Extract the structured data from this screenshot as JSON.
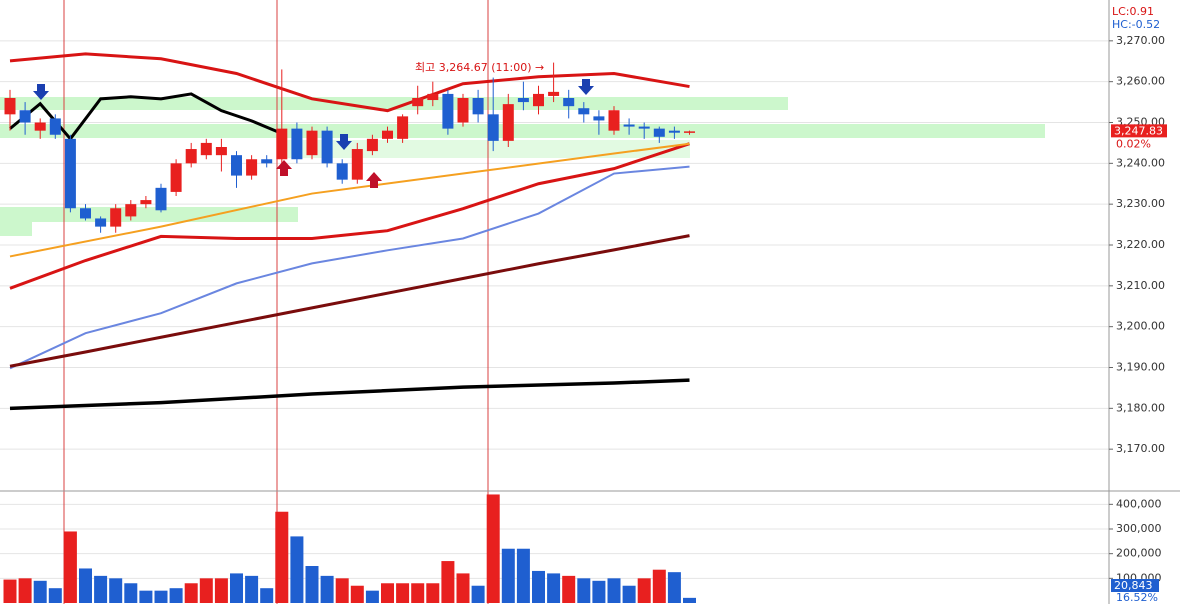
{
  "chart_data": [
    {
      "type": "candlestick",
      "annotation": "최고 3,264.67 (11:00) →",
      "lc_label": "LC:0.91",
      "hc_label": "HC:-0.52",
      "last_label": "3,247.83",
      "change_label": "0.02%",
      "up_color": "#e8201f",
      "down_color": "#1f5fd0",
      "ylim": [
        3160,
        3280
      ],
      "yticks": [
        {
          "value": 3270,
          "label": "3,270.00"
        },
        {
          "value": 3260,
          "label": "3,260.00"
        },
        {
          "value": 3250,
          "label": "3,250.00"
        },
        {
          "value": 3240,
          "label": "3,240.00"
        },
        {
          "value": 3230,
          "label": "3,230.00"
        },
        {
          "value": 3220,
          "label": "3,220.00"
        },
        {
          "value": 3210,
          "label": "3,210.00"
        },
        {
          "value": 3200,
          "label": "3,200.00"
        },
        {
          "value": 3190,
          "label": "3,190.00"
        },
        {
          "value": 3180,
          "label": "3,180.00"
        },
        {
          "value": 3170,
          "label": "3,170.00"
        }
      ],
      "grid": true,
      "open": [
        3252,
        3253,
        3248,
        3251,
        3246,
        3229,
        3226.5,
        3224.5,
        3227,
        3230,
        3234,
        3233,
        3240,
        3242,
        3242,
        3242,
        3237,
        3241,
        3241,
        3248.5,
        3242,
        3248,
        3240,
        3236,
        3243,
        3246,
        3246,
        3254,
        3255.5,
        3257,
        3250,
        3256,
        3252,
        3245.5,
        3256,
        3254,
        3256.5,
        3256,
        3253.5,
        3251.5,
        3248,
        3249.5,
        3249,
        3248.5,
        3248,
        3247.5
      ],
      "high": [
        3258,
        3255,
        3251,
        3252,
        3247,
        3230,
        3227,
        3230,
        3231,
        3232,
        3235,
        3241,
        3245,
        3246,
        3246,
        3243,
        3242,
        3242,
        3263,
        3250,
        3249,
        3249,
        3241,
        3245,
        3247,
        3249,
        3252,
        3259,
        3260,
        3258,
        3257,
        3258,
        3261,
        3257,
        3260,
        3259,
        3264.67,
        3258,
        3255,
        3253,
        3254,
        3251,
        3250,
        3249,
        3249,
        3248
      ],
      "low": [
        3248,
        3247,
        3246,
        3246,
        3228,
        3226,
        3223,
        3223,
        3226,
        3229,
        3228,
        3232,
        3239,
        3241,
        3238,
        3234,
        3236,
        3239,
        3239,
        3240,
        3241,
        3239,
        3235,
        3235,
        3242,
        3245,
        3245,
        3252,
        3254,
        3247,
        3249,
        3250,
        3243,
        3244,
        3253,
        3252,
        3255,
        3251,
        3250,
        3247,
        3247,
        3247,
        3246,
        3245,
        3246,
        3247
      ],
      "close": [
        3256,
        3250,
        3250,
        3247,
        3229,
        3226.5,
        3224.5,
        3229,
        3230,
        3231,
        3228.5,
        3240,
        3243.5,
        3245,
        3244,
        3237,
        3241,
        3240,
        3248.5,
        3241,
        3248,
        3240,
        3236,
        3243.5,
        3246,
        3248,
        3251.5,
        3256,
        3257,
        3248.5,
        3256,
        3252,
        3245.5,
        3254.5,
        3255,
        3257,
        3257.5,
        3254,
        3252,
        3250.5,
        3253,
        3249,
        3248.5,
        3246.5,
        3247.5,
        3247.83
      ],
      "series": [
        {
          "color": "#d81414",
          "width": 3,
          "x": [
            0,
            5,
            10,
            15,
            20,
            25,
            30,
            35,
            40,
            45
          ],
          "values": [
            3265.1,
            3266.8,
            3265.6,
            3262,
            3255.8,
            3252.9,
            3259.5,
            3261.2,
            3262,
            3258.8
          ]
        },
        {
          "color": "#d81414",
          "width": 3,
          "x": [
            0,
            5,
            10,
            15,
            20,
            25,
            30,
            35,
            40,
            45
          ],
          "values": [
            3209.4,
            3216.2,
            3222.1,
            3221.6,
            3221.6,
            3223.5,
            3228.9,
            3235,
            3238.7,
            3244.8
          ]
        },
        {
          "color": "#6a86e0",
          "width": 2,
          "x": [
            0,
            5,
            10,
            15,
            20,
            25,
            30,
            35,
            40,
            45
          ],
          "values": [
            3189.8,
            3198.4,
            3203.3,
            3210.6,
            3215.5,
            3218.7,
            3221.6,
            3227.7,
            3237.5,
            3239.2
          ]
        },
        {
          "color": "#7a0c0c",
          "width": 3,
          "x": [
            0,
            5,
            10,
            15,
            20,
            25,
            30,
            35,
            40,
            45
          ],
          "values": [
            3190.3,
            3193.8,
            3197.4,
            3201,
            3204.6,
            3208.2,
            3211.8,
            3215.4,
            3218.8,
            3222.3
          ]
        },
        {
          "color": "#000000",
          "width": 3.5,
          "x": [
            0,
            10,
            20,
            30,
            40,
            45
          ],
          "values": [
            3180,
            3181.4,
            3183.5,
            3185.2,
            3186.2,
            3186.9
          ]
        },
        {
          "color": "#f5a020",
          "width": 2,
          "x": [
            0,
            10,
            20,
            30,
            40,
            45
          ],
          "values": [
            3217.2,
            3224.5,
            3232.6,
            3237.5,
            3242.4,
            3244.8
          ]
        },
        {
          "color": "#000000",
          "width": 3,
          "x": [
            0,
            2,
            4,
            6,
            8,
            10,
            12,
            14,
            16,
            18
          ],
          "values": [
            3248.5,
            3254.6,
            3246,
            3255.8,
            3256.3,
            3255.8,
            3257,
            3252.9,
            3250.4,
            3247.3
          ]
        }
      ]
    },
    {
      "type": "bar",
      "last_label": "20,843",
      "ratio_label": "16.52%",
      "ylim": [
        0,
        450000
      ],
      "yticks": [
        {
          "value": 400000,
          "label": "400,000"
        },
        {
          "value": 300000,
          "label": "300,000"
        },
        {
          "value": 200000,
          "label": "200,000"
        },
        {
          "value": 100000,
          "label": "100,000"
        }
      ],
      "values": [
        95000,
        100000,
        90000,
        60000,
        290000,
        140000,
        110000,
        100000,
        80000,
        50000,
        50000,
        60000,
        80000,
        100000,
        100000,
        120000,
        110000,
        60000,
        370000,
        270000,
        150000,
        110000,
        100000,
        70000,
        50000,
        80000,
        80000,
        80000,
        80000,
        170000,
        120000,
        70000,
        440000,
        220000,
        220000,
        130000,
        120000,
        110000,
        100000,
        90000,
        100000,
        70000,
        100000,
        135000,
        125000,
        20843
      ],
      "colors": [
        "#e8201f",
        "#e8201f",
        "#1f5fd0",
        "#1f5fd0",
        "#e8201f",
        "#1f5fd0",
        "#1f5fd0",
        "#1f5fd0",
        "#1f5fd0",
        "#1f5fd0",
        "#1f5fd0",
        "#1f5fd0",
        "#e8201f",
        "#e8201f",
        "#e8201f",
        "#1f5fd0",
        "#1f5fd0",
        "#1f5fd0",
        "#e8201f",
        "#1f5fd0",
        "#1f5fd0",
        "#1f5fd0",
        "#e8201f",
        "#e8201f",
        "#1f5fd0",
        "#e8201f",
        "#e8201f",
        "#e8201f",
        "#e8201f",
        "#e8201f",
        "#e8201f",
        "#1f5fd0",
        "#e8201f",
        "#1f5fd0",
        "#1f5fd0",
        "#1f5fd0",
        "#1f5fd0",
        "#e8201f",
        "#1f5fd0",
        "#1f5fd0",
        "#1f5fd0",
        "#1f5fd0",
        "#e8201f",
        "#e8201f",
        "#1f5fd0",
        "#1f5fd0"
      ]
    }
  ]
}
